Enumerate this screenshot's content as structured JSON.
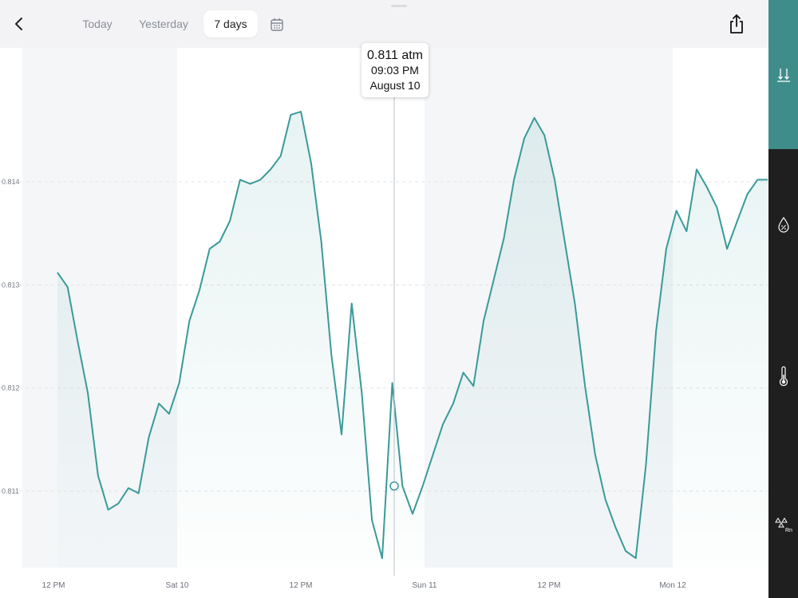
{
  "nav": {
    "tabs": [
      {
        "label": "Today",
        "active": false
      },
      {
        "label": "Yesterday",
        "active": false
      },
      {
        "label": "7 days",
        "active": true
      }
    ],
    "back_icon": "chevron-left-icon",
    "calendar_icon": "calendar-icon",
    "share_icon": "share-icon"
  },
  "sidebar": {
    "items": [
      {
        "icon": "pressure-icon",
        "active": true
      },
      {
        "icon": "humidity-icon",
        "active": false
      },
      {
        "icon": "thermometer-icon",
        "active": false
      },
      {
        "icon": "radon-icon",
        "label": "Rn",
        "active": false
      }
    ]
  },
  "tooltip": {
    "value": "0.811 atm",
    "time": "09:03 PM",
    "date": "August 10"
  },
  "colors": {
    "line": "#3a9a98",
    "accent": "#3f8d8b",
    "sidebar_bg": "#1f1f1f",
    "band": "#f4f6f8"
  },
  "chart_data": {
    "type": "area",
    "ylim": [
      0.8103,
      0.8149
    ],
    "y_ticks": [
      0.811,
      0.812,
      0.813,
      0.814
    ],
    "y_tick_labels": [
      "0.811",
      "0.812",
      "0.813",
      "0.814"
    ],
    "x_tick_labels": [
      "12 PM",
      "Sat 10",
      "12 PM",
      "Sun 11",
      "12 PM",
      "Mon 12"
    ],
    "grid": "horizontal dashed",
    "series": [
      {
        "values": [
          [
            0,
            0.81312
          ],
          [
            1,
            0.81298
          ],
          [
            2,
            0.81245
          ],
          [
            3,
            0.81195
          ],
          [
            4,
            0.81115
          ],
          [
            5,
            0.81082
          ],
          [
            6,
            0.81088
          ],
          [
            7,
            0.81103
          ],
          [
            8,
            0.81098
          ],
          [
            9,
            0.81152
          ],
          [
            10,
            0.81185
          ],
          [
            11,
            0.81175
          ],
          [
            12,
            0.81205
          ],
          [
            13,
            0.81265
          ],
          [
            14,
            0.81295
          ],
          [
            15,
            0.81335
          ],
          [
            16,
            0.81342
          ],
          [
            17,
            0.81362
          ],
          [
            18,
            0.81402
          ],
          [
            19,
            0.81398
          ],
          [
            20,
            0.81402
          ],
          [
            21,
            0.81412
          ],
          [
            22,
            0.81425
          ],
          [
            23,
            0.81465
          ],
          [
            24,
            0.81468
          ],
          [
            25,
            0.81418
          ],
          [
            26,
            0.81342
          ],
          [
            27,
            0.81232
          ],
          [
            28,
            0.81155
          ],
          [
            29,
            0.81282
          ],
          [
            30,
            0.81195
          ],
          [
            31,
            0.81072
          ],
          [
            32,
            0.81035
          ],
          [
            33,
            0.81205
          ],
          [
            34,
            0.81105
          ],
          [
            35,
            0.81078
          ],
          [
            36,
            0.81105
          ],
          [
            37,
            0.81135
          ],
          [
            38,
            0.81165
          ],
          [
            39,
            0.81185
          ],
          [
            40,
            0.81215
          ],
          [
            41,
            0.81202
          ],
          [
            42,
            0.81265
          ],
          [
            43,
            0.81305
          ],
          [
            44,
            0.81345
          ],
          [
            45,
            0.81402
          ],
          [
            46,
            0.81442
          ],
          [
            47,
            0.81462
          ],
          [
            48,
            0.81445
          ],
          [
            49,
            0.81402
          ],
          [
            50,
            0.81342
          ],
          [
            51,
            0.81282
          ],
          [
            52,
            0.81202
          ],
          [
            53,
            0.81135
          ],
          [
            54,
            0.81092
          ],
          [
            55,
            0.81065
          ],
          [
            56,
            0.81042
          ],
          [
            57,
            0.81035
          ],
          [
            58,
            0.81125
          ],
          [
            59,
            0.81255
          ],
          [
            60,
            0.81335
          ],
          [
            61,
            0.81372
          ],
          [
            62,
            0.81352
          ],
          [
            63,
            0.81412
          ],
          [
            64,
            0.81395
          ],
          [
            65,
            0.81375
          ],
          [
            66,
            0.81335
          ],
          [
            67,
            0.81362
          ],
          [
            68,
            0.81388
          ],
          [
            69,
            0.81402
          ],
          [
            70,
            0.81402
          ]
        ]
      }
    ],
    "highlight": {
      "label": "0.811 atm",
      "time": "09:03 PM",
      "date": "August 10",
      "value": 0.81105
    }
  }
}
